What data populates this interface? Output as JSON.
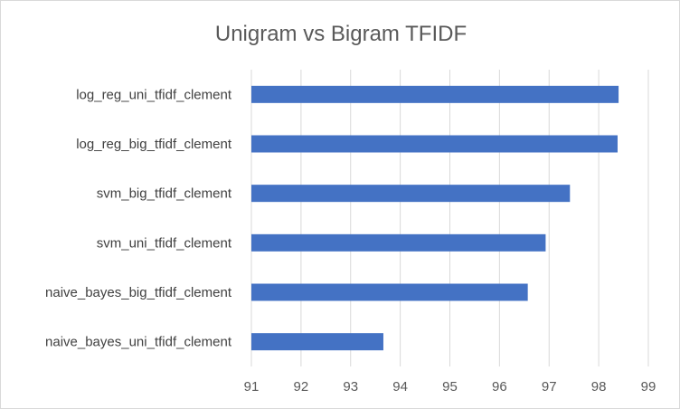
{
  "chart_data": {
    "type": "bar",
    "orientation": "horizontal",
    "title": "Unigram vs Bigram TFIDF",
    "xlabel": "",
    "ylabel": "",
    "categories": [
      "log_reg_uni_tfidf_clement",
      "log_reg_big_tfidf_clement",
      "svm_big_tfidf_clement",
      "svm_uni_tfidf_clement",
      "naive_bayes_big_tfidf_clement",
      "naive_bayes_uni_tfidf_clement"
    ],
    "values": [
      98.4,
      98.38,
      97.42,
      96.93,
      96.57,
      93.66
    ],
    "xlim": [
      91,
      99
    ],
    "xticks": [
      "91",
      "92",
      "93",
      "94",
      "95",
      "96",
      "97",
      "98",
      "99"
    ],
    "grid": "vertical",
    "legend": "none",
    "bar_color": "#4472c4"
  }
}
